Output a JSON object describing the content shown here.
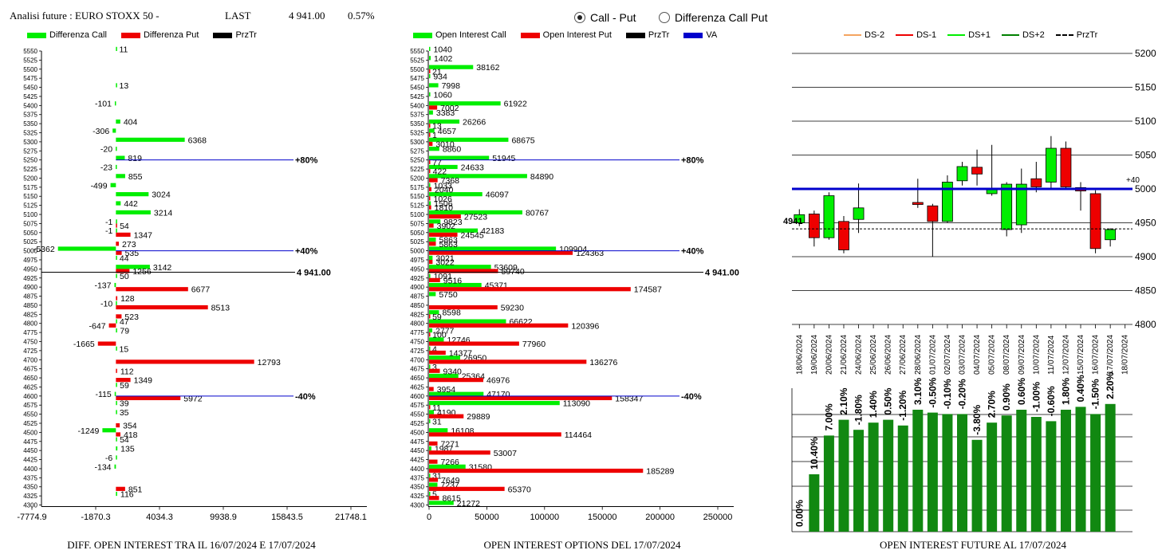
{
  "header": {
    "title": "Analisi future : EURO STOXX 50 -",
    "last_label": "LAST",
    "last_value": "4 941.00",
    "change": "0.57%"
  },
  "mode": {
    "options": [
      "Call - Put",
      "Differenza Call Put"
    ],
    "selected": "Call - Put"
  },
  "colors": {
    "call": "#00ee00",
    "put": "#ee0000",
    "price": "#000000",
    "va": "#0000cc",
    "ds_minus2": "#f4a460",
    "ds_minus1": "#ee0000",
    "ds_plus1": "#00ee00",
    "ds_plus2": "#008000",
    "bar_future": "#118811"
  },
  "legend1": [
    "Differenza Call",
    "Differenza Put",
    "PrzTr"
  ],
  "legend2": [
    "Open Interest Call",
    "Open Interest Put",
    "PrzTr",
    "VA"
  ],
  "legend3": [
    "DS-2",
    "DS-1",
    "DS+1",
    "DS+2",
    "PrzTr"
  ],
  "captions": {
    "left": "DIFF. OPEN INTEREST TRA IL 16/07/2024 E 17/07/2024",
    "middle": "OPEN INTEREST OPTIONS DEL 17/07/2024",
    "right": "OPEN INTEREST FUTURE AL 17/07/2024"
  },
  "chart_data": [
    {
      "type": "bar",
      "orientation": "horizontal",
      "categories": [
        "5550",
        "5525",
        "5500",
        "5475",
        "5450",
        "5425",
        "5400",
        "5375",
        "5350",
        "5325",
        "5300",
        "5275",
        "5250",
        "5225",
        "5200",
        "5175",
        "5150",
        "5125",
        "5100",
        "5075",
        "5050",
        "5025",
        "5000",
        "4975",
        "4950",
        "4925",
        "4900",
        "4875",
        "4850",
        "4825",
        "4800",
        "4775",
        "4750",
        "4725",
        "4700",
        "4675",
        "4650",
        "4625",
        "4600",
        "4575",
        "4550",
        "4525",
        "4500",
        "4475",
        "4450",
        "4425",
        "4400",
        "4375",
        "4350",
        "4325",
        "4300"
      ],
      "series": [
        {
          "name": "Differenza Call",
          "values": [
            11,
            null,
            null,
            null,
            13,
            null,
            -101,
            null,
            404,
            -306,
            6368,
            -20,
            819,
            -23,
            855,
            -499,
            3024,
            442,
            3214,
            -1,
            -1,
            null,
            -5362,
            44,
            3142,
            50,
            -137,
            null,
            -10,
            null,
            47,
            79,
            null,
            15,
            null,
            null,
            null,
            59,
            -115,
            39,
            35,
            null,
            -1249,
            54,
            135,
            -6,
            -134,
            null,
            null,
            116,
            null
          ]
        },
        {
          "name": "Differenza Put",
          "values": [
            null,
            null,
            null,
            null,
            null,
            null,
            null,
            null,
            null,
            null,
            null,
            null,
            null,
            null,
            null,
            null,
            null,
            null,
            null,
            54,
            1347,
            273,
            535,
            null,
            1256,
            null,
            6677,
            128,
            8513,
            523,
            -647,
            null,
            -1665,
            null,
            12793,
            112,
            1349,
            null,
            5972,
            null,
            null,
            354,
            418,
            null,
            null,
            null,
            null,
            null,
            851,
            null,
            null
          ]
        }
      ],
      "price_line": {
        "value": 4941,
        "label": "4 941.00"
      },
      "reference_lines": [
        {
          "strike": 5250,
          "label": "+80%"
        },
        {
          "strike": 5000,
          "label": "+40%"
        },
        {
          "strike": 4600,
          "label": "-40%"
        }
      ],
      "xticks": [
        "-7774.9",
        "-1870.3",
        "4034.3",
        "9938.9",
        "15843.5",
        "21748.1"
      ],
      "xlim": [
        -7774.9,
        21748.1
      ]
    },
    {
      "type": "bar",
      "orientation": "horizontal",
      "categories": [
        "5550",
        "5525",
        "5500",
        "5475",
        "5450",
        "5425",
        "5400",
        "5375",
        "5350",
        "5325",
        "5300",
        "5275",
        "5250",
        "5225",
        "5200",
        "5175",
        "5150",
        "5125",
        "5100",
        "5075",
        "5050",
        "5025",
        "5000",
        "4975",
        "4950",
        "4925",
        "4900",
        "4875",
        "4850",
        "4825",
        "4800",
        "4775",
        "4750",
        "4725",
        "4700",
        "4675",
        "4650",
        "4625",
        "4600",
        "4575",
        "4550",
        "4525",
        "4500",
        "4475",
        "4450",
        "4425",
        "4400",
        "4375",
        "4350",
        "4325",
        "4300"
      ],
      "series": [
        {
          "name": "Open Interest Call",
          "values": [
            1040,
            1402,
            38162,
            934,
            7998,
            1060,
            61922,
            3383,
            26266,
            4657,
            68675,
            8860,
            51945,
            24633,
            84890,
            1033,
            46097,
            1506,
            80767,
            9823,
            42183,
            5863,
            109904,
            3021,
            53609,
            1091,
            45371,
            5750,
            null,
            8598,
            66622,
            2777,
            12746,
            4,
            26950,
            3,
            25364,
            null,
            47170,
            113090,
            4190,
            31,
            16108,
            null,
            1987,
            null,
            31580,
            31,
            7237,
            5,
            21272
          ]
        },
        {
          "name": "Open Interest Put",
          "values": [
            null,
            null,
            21,
            null,
            null,
            null,
            7002,
            null,
            13,
            1,
            3010,
            null,
            77,
            422,
            7368,
            2040,
            1026,
            1810,
            27523,
            3902,
            24545,
            5863,
            124363,
            3022,
            59740,
            9516,
            174587,
            null,
            59230,
            59,
            120396,
            100,
            77960,
            14377,
            136276,
            9340,
            46976,
            3954,
            158347,
            11,
            29889,
            null,
            114464,
            7271,
            53007,
            7266,
            185289,
            7649,
            65370,
            8615,
            null
          ]
        }
      ],
      "price_line": {
        "value": 4941,
        "label": "4 941.00"
      },
      "reference_lines": [
        {
          "strike": 5250,
          "label": "+80%"
        },
        {
          "strike": 5000,
          "label": "+40%"
        },
        {
          "strike": 4600,
          "label": "-40%"
        }
      ],
      "xticks": [
        "0",
        "50000",
        "100000",
        "150000",
        "200000",
        "250000"
      ],
      "xlim": [
        0,
        250000
      ]
    },
    {
      "type": "candlestick",
      "dates": [
        "18/06/2024",
        "19/06/2024",
        "20/06/2024",
        "21/06/2024",
        "24/06/2024",
        "25/06/2024",
        "26/06/2024",
        "27/06/2024",
        "28/06/2024",
        "01/07/2024",
        "02/07/2024",
        "03/07/2024",
        "04/07/2024",
        "05/07/2024",
        "08/07/2024",
        "09/07/2024",
        "10/07/2024",
        "11/07/2024",
        "12/07/2024",
        "15/07/2024",
        "16/07/2024",
        "17/07/2024",
        "18/07/2024"
      ],
      "ohlc": [
        [
          4950,
          4970,
          4945,
          4962
        ],
        [
          4963,
          4968,
          4915,
          4928
        ],
        [
          4928,
          4995,
          4925,
          4990
        ],
        [
          4952,
          4960,
          4905,
          4910
        ],
        [
          4955,
          5008,
          4935,
          4972
        ],
        null,
        null,
        null,
        [
          4980,
          5015,
          4972,
          4977
        ],
        [
          4975,
          4978,
          4900,
          4952
        ],
        [
          4952,
          5020,
          4950,
          5010
        ],
        [
          5012,
          5040,
          5005,
          5033
        ],
        [
          5032,
          5058,
          5005,
          5022
        ],
        [
          4993,
          5065,
          4990,
          5000
        ],
        [
          4940,
          5010,
          4930,
          5007
        ],
        [
          4947,
          5030,
          4935,
          5007
        ],
        [
          5015,
          5040,
          4995,
          5003
        ],
        [
          5010,
          5078,
          5000,
          5060
        ],
        [
          5060,
          5070,
          5000,
          5003
        ],
        [
          5002,
          5010,
          4968,
          4997
        ],
        [
          4993,
          4998,
          4905,
          4912
        ],
        [
          4925,
          4942,
          4915,
          4940
        ]
      ],
      "value_area_line": 5000,
      "value_area_label": "+40",
      "price_line": 4941,
      "price_label": "4941",
      "ylim": [
        4800,
        5200
      ],
      "yticks": [
        "5200",
        "5150",
        "5100",
        "5050",
        "5000",
        "4950",
        "4900",
        "4850",
        "4800"
      ]
    },
    {
      "type": "bar",
      "categories": [
        "18/06/2024",
        "19/06/2024",
        "20/06/2024",
        "21/06/2024",
        "24/06/2024",
        "25/06/2024",
        "26/06/2024",
        "27/06/2024",
        "28/06/2024",
        "01/07/2024",
        "02/07/2024",
        "03/07/2024",
        "04/07/2024",
        "05/07/2024",
        "08/07/2024",
        "09/07/2024",
        "10/07/2024",
        "11/07/2024",
        "12/07/2024",
        "15/07/2024",
        "16/07/2024",
        "17/07/2024",
        "18/07/2024"
      ],
      "values": [
        0.0,
        10.4,
        7.0,
        2.1,
        -1.8,
        1.4,
        0.5,
        -1.2,
        3.1,
        -0.5,
        -0.1,
        -0.2,
        -3.8,
        2.7,
        0.9,
        0.6,
        -1.0,
        -0.6,
        1.8,
        0.4,
        -1.5,
        2.2,
        null
      ],
      "value_labels": [
        "0.00%",
        "10.40%",
        "7.00%",
        "2.10%",
        "-1.80%",
        "1.40%",
        "0.50%",
        "-1.20%",
        "3.10%",
        "-0.50%",
        "-0.10%",
        "-0.20%",
        "-3.80%",
        "2.70%",
        "0.90%",
        "0.60%",
        "-1.00%",
        "-0.60%",
        "1.80%",
        "0.40%",
        "-1.50%",
        "2.20%",
        ""
      ],
      "relative_heights": [
        0.0,
        0.4,
        0.67,
        0.78,
        0.71,
        0.76,
        0.78,
        0.74,
        0.85,
        0.83,
        0.82,
        0.82,
        0.64,
        0.76,
        0.81,
        0.85,
        0.8,
        0.77,
        0.85,
        0.87,
        0.82,
        0.89,
        null
      ]
    }
  ]
}
